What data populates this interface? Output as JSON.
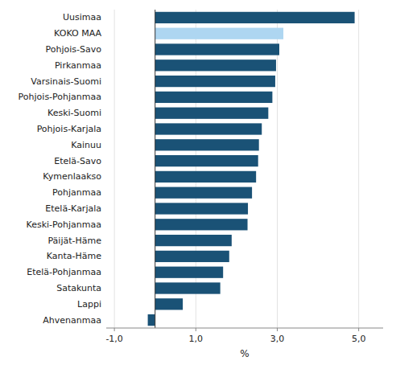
{
  "chart_data": {
    "type": "bar",
    "orientation": "horizontal",
    "categories": [
      "Uusimaa",
      "KOKO MAA",
      "Pohjois-Savo",
      "Pirkanmaa",
      "Varsinais-Suomi",
      "Pohjois-Pohjanmaa",
      "Keski-Suomi",
      "Pohjois-Karjala",
      "Kainuu",
      "Etelä-Savo",
      "Kymenlaakso",
      "Pohjanmaa",
      "Etelä-Karjala",
      "Keski-Pohjanmaa",
      "Päijät-Häme",
      "Kanta-Häme",
      "Etelä-Pohjanmaa",
      "Satakunta",
      "Lappi",
      "Ahvenanmaa"
    ],
    "values": [
      4.9,
      3.15,
      3.05,
      2.97,
      2.95,
      2.88,
      2.78,
      2.62,
      2.55,
      2.53,
      2.48,
      2.38,
      2.28,
      2.27,
      1.88,
      1.82,
      1.67,
      1.6,
      0.68,
      -0.18
    ],
    "colors": [
      "#1a5276",
      "#aed6f1",
      "#1a5276",
      "#1a5276",
      "#1a5276",
      "#1a5276",
      "#1a5276",
      "#1a5276",
      "#1a5276",
      "#1a5276",
      "#1a5276",
      "#1a5276",
      "#1a5276",
      "#1a5276",
      "#1a5276",
      "#1a5276",
      "#1a5276",
      "#1a5276",
      "#1a5276",
      "#1a5276"
    ],
    "xlabel": "%",
    "xlim": [
      -1.2,
      5.6
    ],
    "xticks": [
      {
        "value": -1.0,
        "label": "-1,0"
      },
      {
        "value": 1.0,
        "label": "1,0"
      },
      {
        "value": 3.0,
        "label": "3,0"
      },
      {
        "value": 5.0,
        "label": "5,0"
      }
    ],
    "grid": true
  }
}
